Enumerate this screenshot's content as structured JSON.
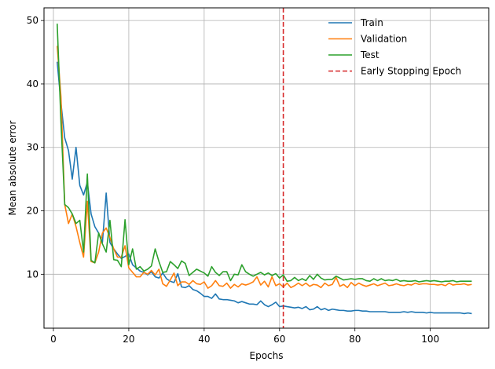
{
  "chart_data": {
    "type": "line",
    "title": "",
    "xlabel": "Epochs",
    "ylabel": "Mean absolute error",
    "xlim": [
      -2.5,
      115.5
    ],
    "ylim": [
      1.5,
      52
    ],
    "xticks": [
      0,
      20,
      40,
      60,
      80,
      100
    ],
    "yticks": [
      10,
      20,
      30,
      40,
      50
    ],
    "grid": true,
    "legend_position": "top-right",
    "vline": {
      "name": "Early Stopping Epoch",
      "x": 61,
      "color": "#d62728"
    },
    "x": [
      1,
      2,
      3,
      4,
      5,
      6,
      7,
      8,
      9,
      10,
      11,
      12,
      13,
      14,
      15,
      16,
      17,
      18,
      19,
      20,
      21,
      22,
      23,
      24,
      25,
      26,
      27,
      28,
      29,
      30,
      31,
      32,
      33,
      34,
      35,
      36,
      37,
      38,
      39,
      40,
      41,
      42,
      43,
      44,
      45,
      46,
      47,
      48,
      49,
      50,
      51,
      52,
      53,
      54,
      55,
      56,
      57,
      58,
      59,
      60,
      61,
      62,
      63,
      64,
      65,
      66,
      67,
      68,
      69,
      70,
      71,
      72,
      73,
      74,
      75,
      76,
      77,
      78,
      79,
      80,
      81,
      82,
      83,
      84,
      85,
      86,
      87,
      88,
      89,
      90,
      91,
      92,
      93,
      94,
      95,
      96,
      97,
      98,
      99,
      100,
      101,
      102,
      103,
      104,
      105,
      106,
      107,
      108,
      109,
      110,
      111
    ],
    "series": [
      {
        "name": "Train",
        "color": "#1f77b4",
        "values": [
          43.5,
          37.0,
          31.5,
          29.5,
          25.0,
          30.0,
          24.0,
          22.5,
          24.5,
          19.5,
          17.5,
          16.5,
          15.0,
          22.8,
          15.0,
          14.0,
          13.2,
          12.5,
          12.8,
          13.2,
          11.5,
          11.0,
          10.5,
          10.3,
          9.9,
          10.4,
          9.6,
          9.4,
          10.2,
          9.3,
          8.9,
          8.7,
          10.1,
          8.0,
          7.9,
          8.2,
          7.6,
          7.4,
          7.0,
          6.5,
          6.5,
          6.2,
          6.9,
          6.1,
          6.0,
          6.0,
          5.9,
          5.8,
          5.5,
          5.7,
          5.5,
          5.3,
          5.3,
          5.2,
          5.8,
          5.2,
          4.9,
          5.2,
          5.6,
          4.9,
          5.0,
          4.9,
          4.8,
          4.7,
          4.8,
          4.6,
          4.9,
          4.4,
          4.5,
          4.9,
          4.4,
          4.6,
          4.3,
          4.5,
          4.4,
          4.3,
          4.3,
          4.2,
          4.2,
          4.3,
          4.3,
          4.2,
          4.2,
          4.1,
          4.1,
          4.1,
          4.1,
          4.1,
          4.0,
          4.0,
          4.0,
          4.0,
          4.1,
          4.0,
          4.1,
          4.0,
          4.0,
          4.0,
          3.9,
          4.0,
          3.9,
          3.9,
          3.9,
          3.9,
          3.9,
          3.9,
          3.9,
          3.9,
          3.8,
          3.9,
          3.8
        ]
      },
      {
        "name": "Validation",
        "color": "#ff7f0e",
        "values": [
          46.0,
          38.0,
          21.0,
          18.0,
          19.5,
          17.5,
          15.0,
          12.7,
          21.5,
          12.0,
          11.8,
          13.5,
          16.5,
          17.3,
          15.8,
          14.0,
          12.7,
          12.7,
          14.5,
          11.0,
          10.3,
          9.6,
          9.6,
          10.3,
          10.0,
          10.6,
          9.9,
          10.8,
          8.5,
          8.1,
          9.1,
          10.2,
          8.2,
          8.8,
          8.8,
          8.4,
          9.0,
          8.5,
          8.4,
          8.8,
          7.8,
          8.2,
          9.0,
          8.2,
          8.1,
          8.6,
          7.8,
          8.4,
          8.0,
          8.5,
          8.3,
          8.5,
          8.8,
          9.6,
          8.3,
          8.9,
          8.0,
          9.6,
          8.2,
          8.5,
          8.0,
          8.6,
          7.9,
          8.2,
          8.6,
          8.2,
          8.6,
          8.1,
          8.4,
          8.3,
          7.9,
          8.6,
          8.2,
          8.4,
          9.5,
          8.1,
          8.4,
          7.9,
          8.7,
          8.2,
          8.6,
          8.3,
          8.1,
          8.3,
          8.5,
          8.2,
          8.4,
          8.6,
          8.2,
          8.3,
          8.5,
          8.3,
          8.2,
          8.4,
          8.3,
          8.6,
          8.4,
          8.5,
          8.5,
          8.4,
          8.4,
          8.3,
          8.4,
          8.2,
          8.6,
          8.3,
          8.4,
          8.4,
          8.5,
          8.3,
          8.4
        ]
      },
      {
        "name": "Test",
        "color": "#2ca02c",
        "values": [
          49.5,
          34.0,
          21.0,
          20.5,
          19.5,
          18.0,
          18.5,
          13.5,
          25.8,
          12.2,
          11.8,
          16.5,
          14.8,
          13.5,
          18.5,
          12.3,
          12.2,
          11.2,
          18.6,
          11.5,
          14.0,
          10.8,
          11.2,
          10.5,
          10.8,
          11.3,
          14.0,
          12.0,
          10.3,
          10.4,
          12.0,
          11.5,
          10.9,
          12.1,
          11.7,
          9.8,
          10.3,
          10.8,
          10.5,
          10.2,
          9.7,
          11.2,
          10.3,
          9.8,
          10.4,
          10.4,
          9.0,
          10.0,
          9.9,
          11.5,
          10.4,
          10.0,
          9.7,
          10.0,
          10.3,
          9.9,
          10.2,
          9.8,
          10.1,
          9.4,
          9.9,
          8.9,
          9.0,
          9.5,
          9.0,
          9.3,
          9.0,
          9.8,
          9.2,
          10.0,
          9.4,
          9.1,
          9.2,
          9.2,
          9.7,
          9.4,
          9.1,
          9.2,
          9.3,
          9.2,
          9.3,
          9.3,
          9.0,
          8.9,
          9.3,
          9.0,
          9.3,
          9.0,
          9.1,
          9.0,
          9.2,
          8.9,
          9.0,
          8.9,
          8.9,
          9.0,
          8.8,
          8.9,
          9.0,
          8.9,
          9.0,
          8.9,
          8.8,
          8.9,
          8.9,
          9.0,
          8.8,
          8.9,
          8.9,
          8.9,
          8.9
        ]
      }
    ]
  }
}
